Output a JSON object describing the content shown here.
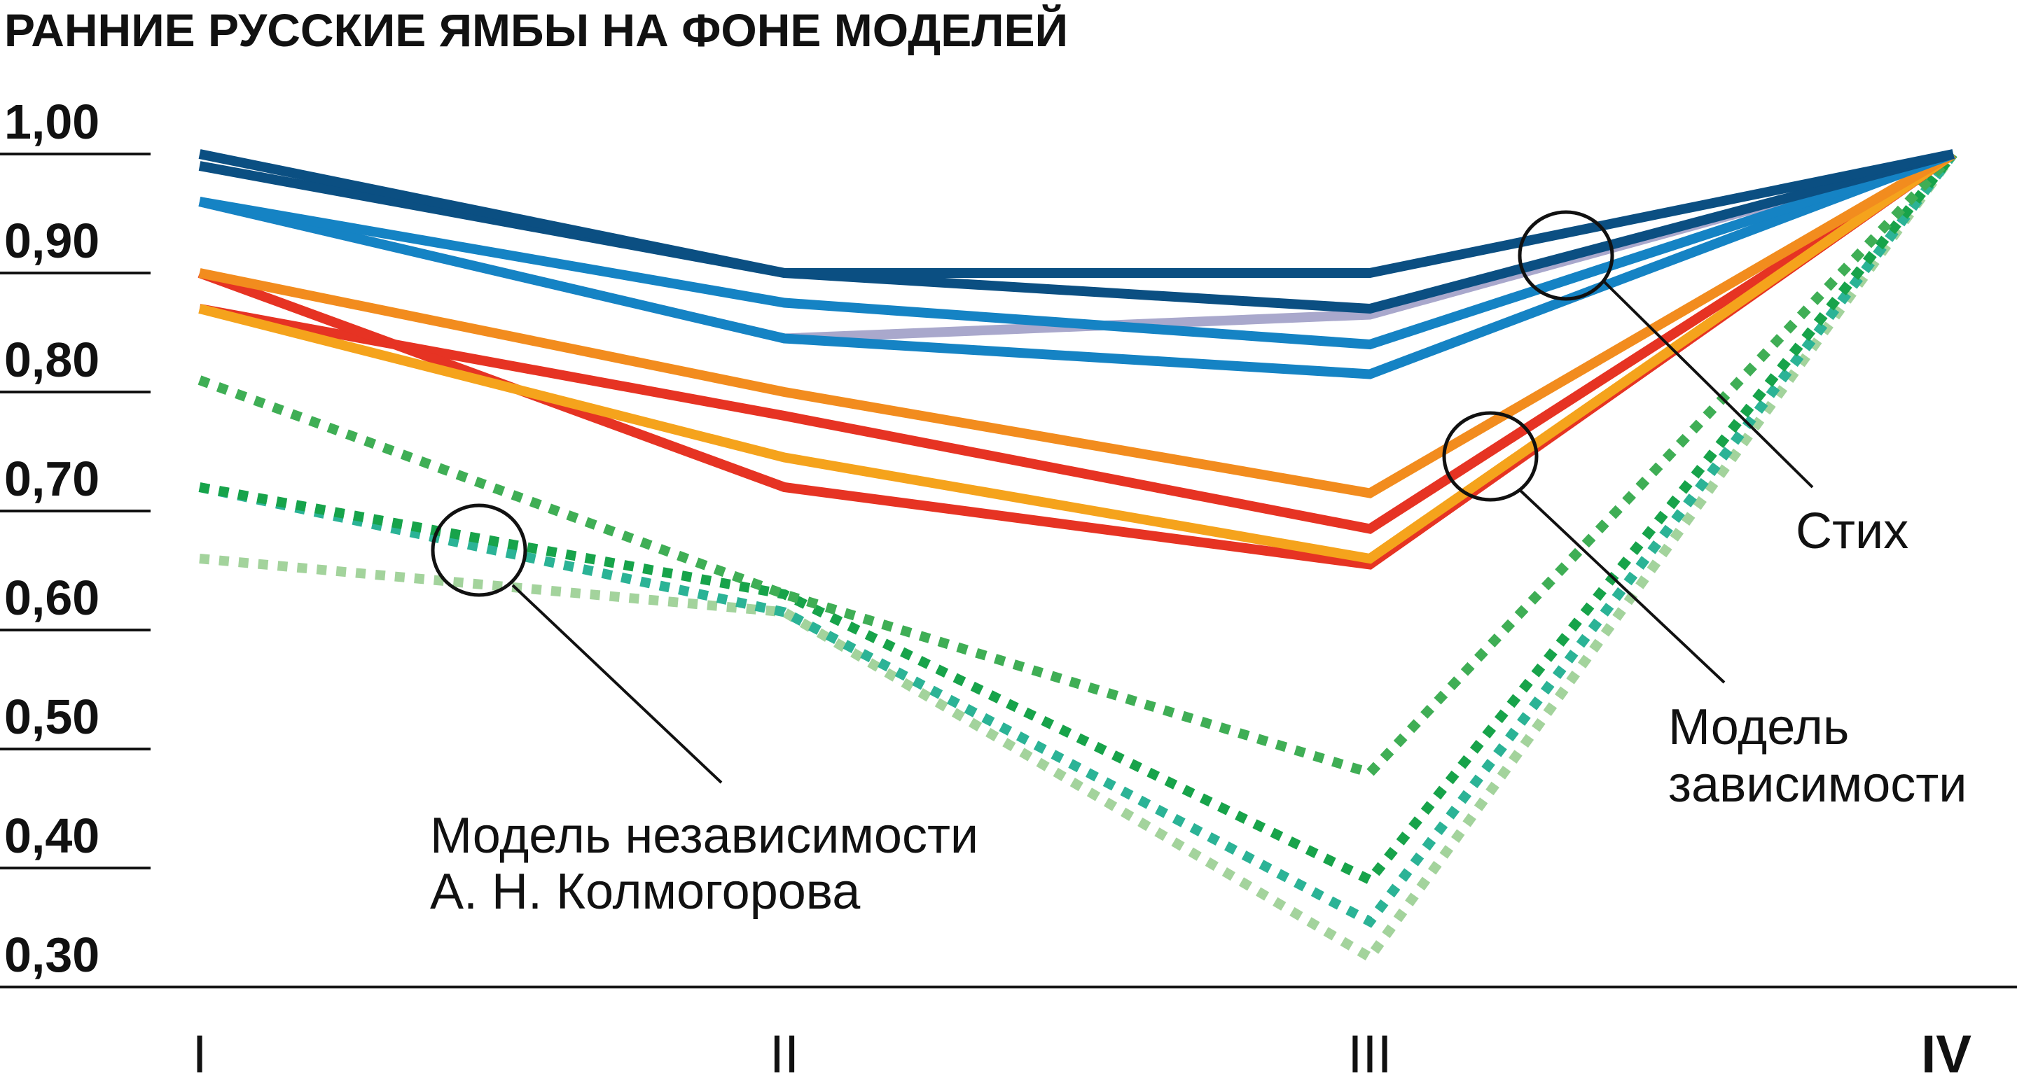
{
  "chart_data": {
    "type": "line",
    "title": "РАННИЕ РУССКИЕ ЯМБЫ НА ФОНЕ МОДЕЛЕЙ",
    "xlabel": "",
    "ylabel": "",
    "categories": [
      "I",
      "II",
      "III",
      "IV"
    ],
    "ylim": [
      0.3,
      1.0
    ],
    "yticks": [
      "1,00",
      "0,90",
      "0,80",
      "0,70",
      "0,60",
      "0,50",
      "0,40",
      "0,30"
    ],
    "ytick_values": [
      1.0,
      0.9,
      0.8,
      0.7,
      0.6,
      0.5,
      0.4,
      0.3
    ],
    "series": [
      {
        "name": "Стих 1",
        "group": "verse",
        "color": "#0b4f82",
        "style": "solid",
        "values": [
          1.0,
          0.9,
          0.9,
          1.0
        ]
      },
      {
        "name": "Стих 2",
        "group": "verse",
        "color": "#0b4f82",
        "style": "solid",
        "values": [
          0.99,
          0.9,
          0.87,
          1.0
        ]
      },
      {
        "name": "Стих 3",
        "group": "verse",
        "color": "#1583c4",
        "style": "solid",
        "values": [
          0.96,
          0.875,
          0.84,
          1.0
        ]
      },
      {
        "name": "Стих 4",
        "group": "verse",
        "color": "#1583c4",
        "style": "solid",
        "values": [
          0.96,
          0.845,
          0.815,
          1.0
        ]
      },
      {
        "name": "Стих 5",
        "group": "verse",
        "color": "#a9a8cc",
        "style": "solid",
        "values": [
          0.96,
          0.845,
          0.865,
          1.0
        ]
      },
      {
        "name": "Модель зависимости 1",
        "group": "dependence",
        "color": "#f28c1e",
        "style": "solid",
        "values": [
          0.9,
          0.8,
          0.715,
          1.0
        ]
      },
      {
        "name": "Модель зависимости 2",
        "group": "dependence",
        "color": "#f5a31c",
        "style": "solid",
        "values": [
          0.87,
          0.745,
          0.66,
          1.0
        ]
      },
      {
        "name": "Модель зависимости 3",
        "group": "dependence",
        "color": "#e63323",
        "style": "solid",
        "values": [
          0.9,
          0.72,
          0.655,
          1.0
        ]
      },
      {
        "name": "Модель зависимости 4",
        "group": "dependence",
        "color": "#e63323",
        "style": "solid",
        "values": [
          0.87,
          0.78,
          0.685,
          1.0
        ]
      },
      {
        "name": "Модель независимости 1",
        "group": "independence",
        "color": "#3fae55",
        "style": "dotted",
        "values": [
          0.81,
          0.63,
          0.48,
          1.0
        ]
      },
      {
        "name": "Модель независимости 2",
        "group": "independence",
        "color": "#17a34a",
        "style": "dotted",
        "values": [
          0.72,
          0.63,
          0.39,
          1.0
        ]
      },
      {
        "name": "Модель независимости 3",
        "group": "independence",
        "color": "#2bb396",
        "style": "dotted",
        "values": [
          0.72,
          0.615,
          0.355,
          1.0
        ]
      },
      {
        "name": "Модель независимости 4",
        "group": "independence",
        "color": "#a3d39c",
        "style": "dotted",
        "values": [
          0.66,
          0.615,
          0.325,
          1.0
        ]
      }
    ],
    "annotations": {
      "verse": "Стих",
      "dependence": [
        "Модель",
        "зависимости"
      ],
      "independence": [
        "Модель независимости",
        "А. Н. Колмогорова"
      ]
    },
    "grid": false,
    "legend": "none"
  }
}
